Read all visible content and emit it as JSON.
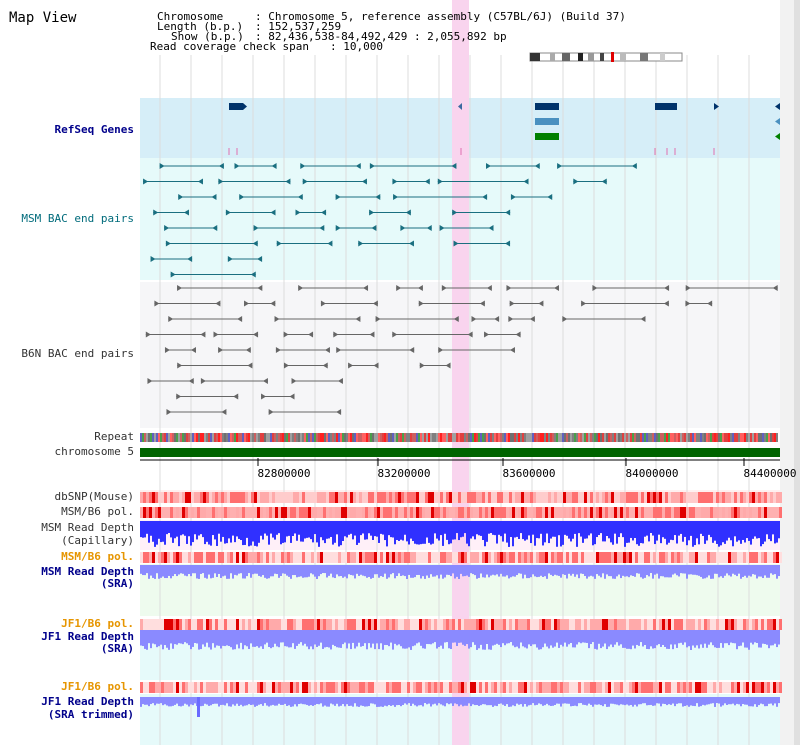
{
  "header": {
    "title": "Map View",
    "chromosome_label": "Chromosome",
    "chromosome_value": ": Chromosome 5, reference assembly (C57BL/6J) (Build 37)",
    "length_label": "Length (b.p.)",
    "length_value": ": 152,537,259",
    "show_label": "Show (b.p.)",
    "show_value": ": 82,436,538-84,492,429 : 2,055,892 bp",
    "coverage_label": "Read coverage check span",
    "coverage_value": ": 10,000"
  },
  "tracks": {
    "refseq": "RefSeq Genes",
    "msm_bac": "MSM BAC end pairs",
    "b6n_bac": "B6N BAC end pairs",
    "repeat": "Repeat",
    "chromosome": "chromosome 5",
    "dbsnp": "dbSNP(Mouse)",
    "msm_b6_pol_1": "MSM/B6 pol.",
    "msm_depth_cap_1": "MSM Read Depth",
    "msm_depth_cap_2": "(Capillary)",
    "msm_b6_pol_2": "MSM/B6 pol.",
    "msm_depth_sra_1": "MSM Read Depth",
    "msm_depth_sra_2": "(SRA)",
    "jf1_b6_pol_1": "JF1/B6 pol.",
    "jf1_depth_sra_1": "JF1 Read Depth",
    "jf1_depth_sra_2": "(SRA)",
    "jf1_b6_pol_2": "JF1/B6 pol.",
    "jf1_depth_trim_1": "JF1 Read Depth",
    "jf1_depth_trim_2": "(SRA trimmed)"
  },
  "axis": {
    "ticks": [
      "82800000",
      "83200000",
      "83600000",
      "84000000",
      "84400000"
    ]
  },
  "colors": {
    "refseq_bg": "#d6eef8",
    "bac_bg": "#e6fafa",
    "highlight": "#f9d4ee",
    "chromosome_bar": "#006400",
    "gene_dark": "#00336b",
    "gene_mid": "#4a90c0",
    "gene_green": "#008000",
    "msm_bac": "#1a6f80",
    "b6n_bac": "#666666",
    "depth_blue": "#3030ff",
    "depth_lavender": "#8a8aff"
  }
}
